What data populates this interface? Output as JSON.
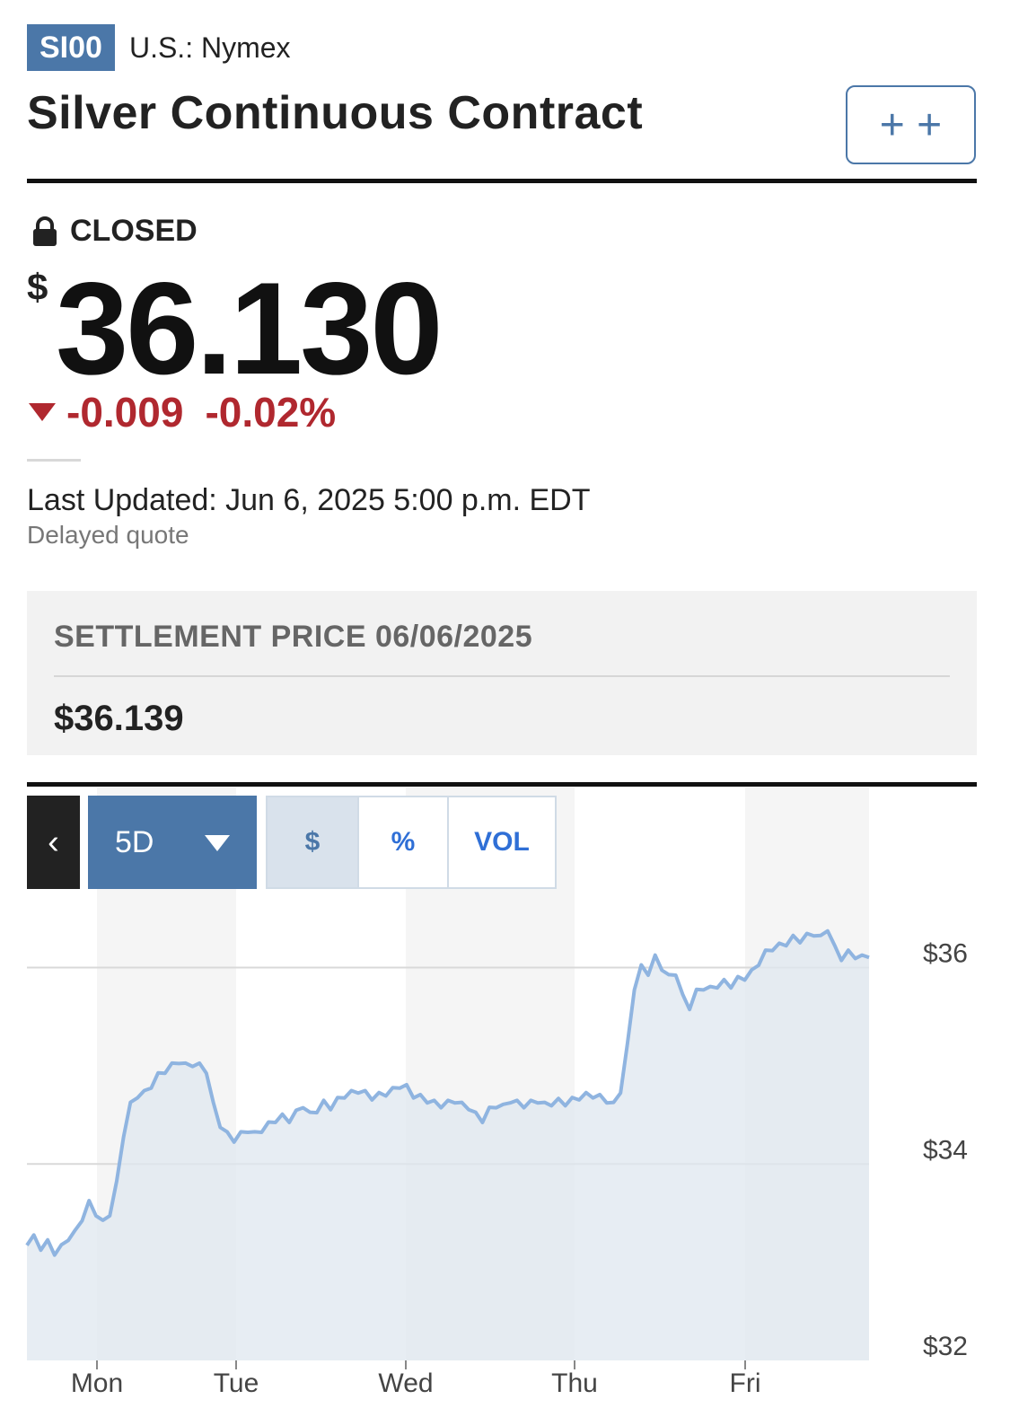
{
  "header": {
    "symbol": "SI00",
    "exchange": "U.S.: Nymex",
    "title": "Silver Continuous Contract",
    "watchlist_icons": "+ +"
  },
  "quote": {
    "status": "CLOSED",
    "currency_symbol": "$",
    "price": "36.130",
    "change": "-0.009",
    "change_percent": "-0.02%",
    "last_updated": "Last Updated: Jun 6, 2025 5:00 p.m. EDT",
    "delay_note": "Delayed quote"
  },
  "settlement": {
    "label": "SETTLEMENT PRICE 06/06/2025",
    "value": "$36.139"
  },
  "chart_controls": {
    "back_label": "‹",
    "range_label": "5D",
    "toggles": [
      {
        "label": "$",
        "active": true
      },
      {
        "label": "%",
        "active": false
      },
      {
        "label": "VOL",
        "active": false
      }
    ]
  },
  "colors": {
    "brand_blue": "#4b77a8",
    "negative_red": "#b0282f",
    "line_blue": "#8fb4e0",
    "area_fill": "#dfe7ef"
  },
  "chart_data": {
    "type": "area",
    "title": "",
    "xlabel": "",
    "ylabel": "",
    "ylim": [
      32,
      36.8
    ],
    "y_ticks": [
      "$36",
      "$34",
      "$32"
    ],
    "y_tick_values": [
      36,
      34,
      32
    ],
    "day_labels": [
      "Mon",
      "Tue",
      "Wed",
      "Thu",
      "Fri"
    ],
    "series": [
      {
        "values": [
          33.2,
          33.25,
          33.15,
          33.2,
          33.1,
          33.15,
          33.25,
          33.3,
          33.45,
          33.6,
          33.5,
          33.4,
          33.5,
          33.8,
          34.3,
          34.6,
          34.7,
          34.72,
          34.8,
          34.9,
          34.95,
          35.0,
          35.05,
          35.0,
          35.02,
          35.0,
          34.95,
          34.6,
          34.4,
          34.3,
          34.25,
          34.3,
          34.35,
          34.3,
          34.35,
          34.4,
          34.45,
          34.48,
          34.45,
          34.52,
          34.6,
          34.5,
          34.55,
          34.62,
          34.58,
          34.65,
          34.7,
          34.72,
          34.75,
          34.72,
          34.68,
          34.7,
          34.72,
          34.75,
          34.8,
          34.78,
          34.7,
          34.68,
          34.65,
          34.62,
          34.6,
          34.62,
          34.65,
          34.6,
          34.58,
          34.5,
          34.45,
          34.55,
          34.6,
          34.58,
          34.65,
          34.62,
          34.6,
          34.62,
          34.65,
          34.6,
          34.62,
          34.64,
          34.62,
          34.65,
          34.68,
          34.7,
          34.7,
          34.68,
          34.65,
          34.6,
          34.75,
          35.2,
          35.8,
          36.0,
          35.95,
          36.1,
          36.0,
          35.9,
          35.95,
          35.7,
          35.6,
          35.75,
          35.8,
          35.78,
          35.82,
          35.85,
          35.82,
          35.88,
          35.9,
          35.95,
          36.05,
          36.15,
          36.2,
          36.22,
          36.25,
          36.3,
          36.28,
          36.32,
          36.35,
          36.3,
          36.4,
          36.2,
          36.1,
          36.15,
          36.12,
          36.1,
          36.13
        ]
      }
    ],
    "grid": true
  }
}
